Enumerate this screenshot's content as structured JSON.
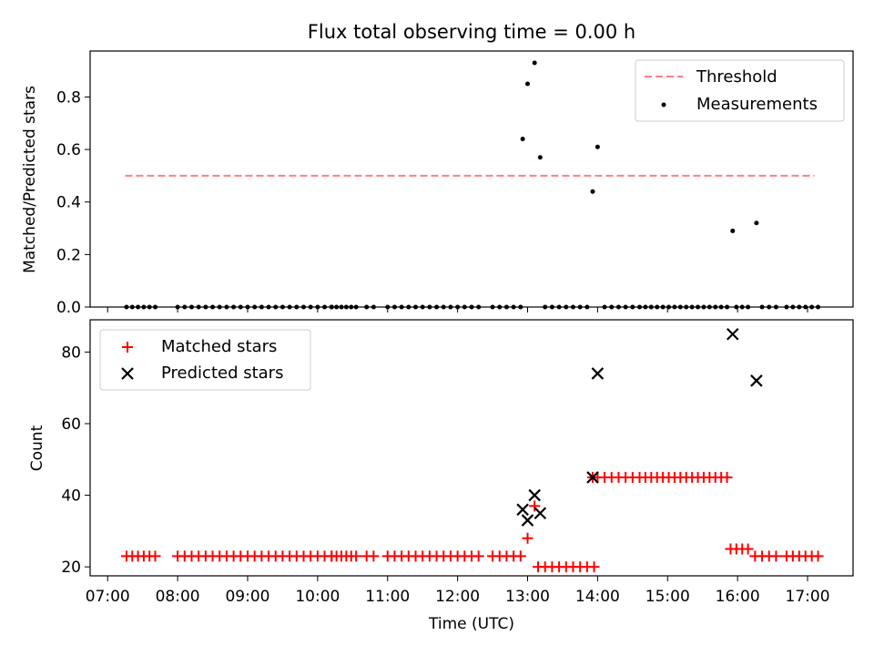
{
  "chart_data": {
    "type": "scatter",
    "title": "Flux total observing time = 0.00 h",
    "xlabel": "Time (UTC)",
    "x_unit": "hours UTC",
    "xlim": [
      6.75,
      17.65
    ],
    "x_ticks": [
      7,
      8,
      9,
      10,
      11,
      12,
      13,
      14,
      15,
      16,
      17
    ],
    "x_tick_labels": [
      "07:00",
      "08:00",
      "09:00",
      "10:00",
      "11:00",
      "12:00",
      "13:00",
      "14:00",
      "15:00",
      "16:00",
      "17:00"
    ],
    "top": {
      "ylabel": "Matched/Predicted stars",
      "ylim": [
        0,
        0.975
      ],
      "y_ticks": [
        0.0,
        0.2,
        0.4,
        0.6,
        0.8
      ],
      "y_tick_labels": [
        "0.0",
        "0.2",
        "0.4",
        "0.6",
        "0.8"
      ],
      "legend": [
        "Threshold",
        "Measurements"
      ],
      "legend_position": "top-right",
      "threshold": {
        "y": 0.5,
        "x_start": 7.25,
        "x_end": 17.1,
        "color": "#ff7f7f"
      },
      "measurements_nonzero": [
        [
          12.93,
          0.64
        ],
        [
          13.0,
          0.85
        ],
        [
          13.1,
          0.93
        ],
        [
          13.18,
          0.57
        ],
        [
          13.93,
          0.44
        ],
        [
          14.0,
          0.61
        ],
        [
          15.93,
          0.29
        ],
        [
          16.27,
          0.32
        ]
      ]
    },
    "bottom": {
      "ylabel": "Count",
      "ylim": [
        17.5,
        89
      ],
      "y_ticks": [
        20,
        40,
        60,
        80
      ],
      "y_tick_labels": [
        "20",
        "40",
        "60",
        "80"
      ],
      "legend": [
        "Matched stars",
        "Predicted stars"
      ],
      "legend_position": "top-left",
      "matched_color": "#ff0000",
      "predicted_color": "#000000",
      "predicted_points": [
        [
          12.93,
          36
        ],
        [
          13.0,
          33
        ],
        [
          13.1,
          40
        ],
        [
          13.18,
          35
        ],
        [
          13.93,
          45
        ],
        [
          14.0,
          74
        ],
        [
          15.93,
          85
        ],
        [
          16.27,
          72
        ]
      ],
      "matched_segments": [
        {
          "x_start": 7.27,
          "x_end": 7.68,
          "step": 0.082,
          "y": 23
        },
        {
          "x_start": 8.0,
          "x_end": 9.5,
          "step": 0.1,
          "y": 23
        },
        {
          "x_start": 9.6,
          "x_end": 10.2,
          "step": 0.1,
          "y": 23
        },
        {
          "x_start": 10.2,
          "x_end": 10.55,
          "step": 0.07,
          "y": 23
        },
        {
          "x_start": 10.7,
          "x_end": 10.8,
          "step": 0.1,
          "y": 23
        },
        {
          "x_start": 11.0,
          "x_end": 12.35,
          "step": 0.1,
          "y": 23
        },
        {
          "x_start": 12.5,
          "x_end": 12.95,
          "step": 0.1,
          "y": 23
        },
        {
          "x_start": 13.15,
          "x_end": 13.95,
          "step": 0.1,
          "y": 20
        },
        {
          "x_start": 14.0,
          "x_end": 14.5,
          "step": 0.1,
          "y": 45
        },
        {
          "x_start": 14.6,
          "x_end": 15.85,
          "step": 0.0833,
          "y": 45
        },
        {
          "x_start": 15.9,
          "x_end": 16.15,
          "step": 0.083,
          "y": 25
        },
        {
          "x_start": 16.25,
          "x_end": 16.55,
          "step": 0.1,
          "y": 23
        },
        {
          "x_start": 16.7,
          "x_end": 17.15,
          "step": 0.09,
          "y": 23
        }
      ],
      "matched_points_extra": [
        [
          13.0,
          28
        ],
        [
          13.1,
          37
        ],
        [
          13.93,
          45
        ]
      ]
    }
  }
}
